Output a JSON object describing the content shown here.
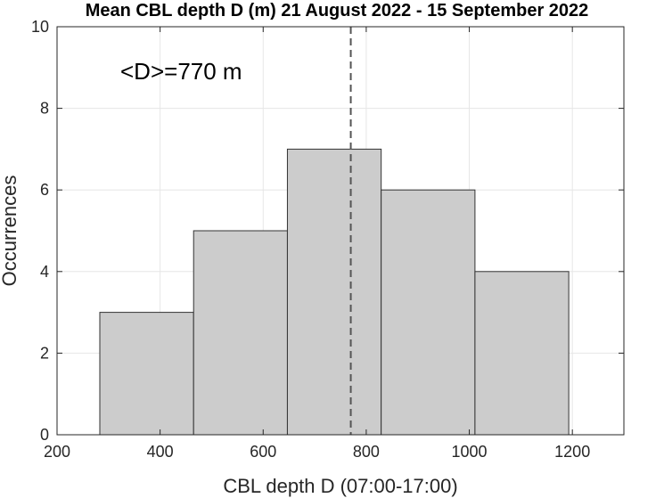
{
  "chart_data": {
    "type": "bar",
    "title": "Mean CBL depth D (m) 21 August 2022 - 15 September 2022",
    "xlabel": "CBL depth D (07:00-17:00)",
    "ylabel": "Occurrences",
    "xlim": [
      200,
      1300
    ],
    "ylim": [
      0,
      10
    ],
    "xticks": [
      200,
      400,
      600,
      800,
      1000,
      1200
    ],
    "yticks": [
      0,
      2,
      4,
      6,
      8,
      10
    ],
    "grid": true,
    "bins": [
      {
        "from": 283,
        "to": 465,
        "count": 3
      },
      {
        "from": 465,
        "to": 647,
        "count": 5
      },
      {
        "from": 647,
        "to": 829,
        "count": 7
      },
      {
        "from": 829,
        "to": 1011,
        "count": 6
      },
      {
        "from": 1011,
        "to": 1193,
        "count": 4
      }
    ],
    "mean_line": 770,
    "annotation": "<D>=770 m",
    "bar_color": "#cccccc",
    "edge_color": "#333333"
  }
}
